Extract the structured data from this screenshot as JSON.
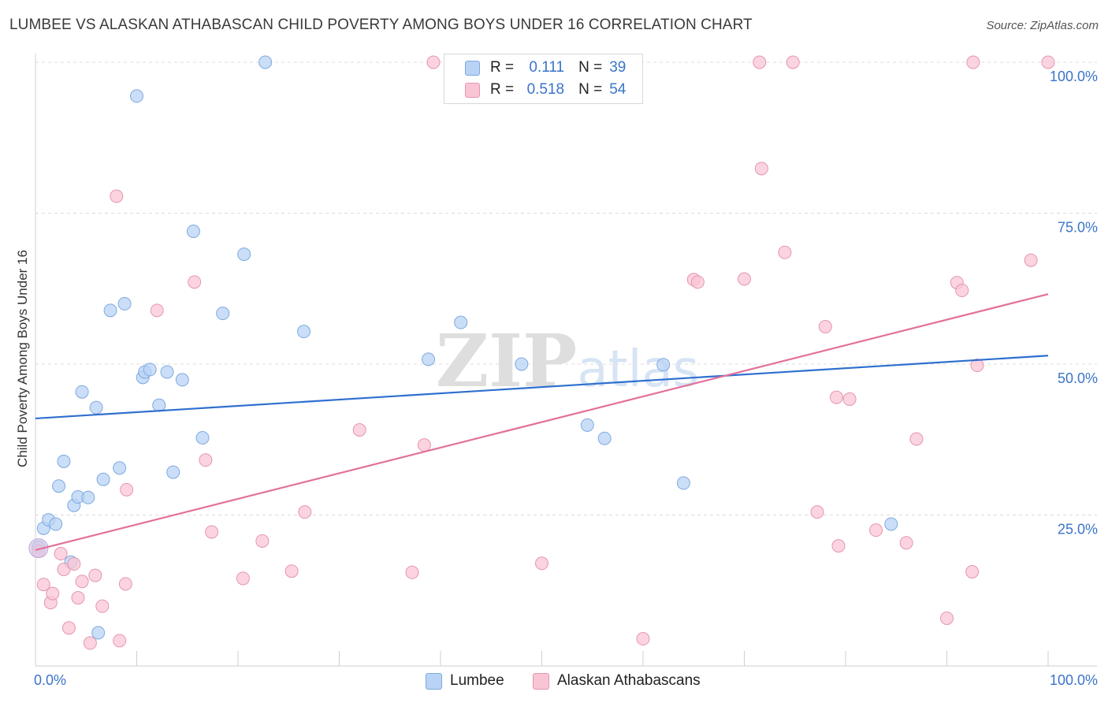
{
  "title": "LUMBEE VS ALASKAN ATHABASCAN CHILD POVERTY AMONG BOYS UNDER 16 CORRELATION CHART",
  "source": "Source: ZipAtlas.com",
  "watermark": "ZIPatlas",
  "legend": {
    "rows": [
      {
        "r_label": "R =",
        "r_value": "0.111",
        "n_label": "N =",
        "n_value": "39"
      },
      {
        "r_label": "R =",
        "r_value": "0.518",
        "n_label": "N =",
        "n_value": "54"
      }
    ]
  },
  "bottom_legend": [
    "Lumbee",
    "Alaskan Athabascans"
  ],
  "colors": {
    "lumbee_fill": "#b8d3f5",
    "lumbee_stroke": "#7fa9df",
    "lumbee_line": "#2f6fcf",
    "athabascan_fill": "#f9c5d5",
    "athabascan_stroke": "#e596b0",
    "athabascan_line": "#e2719a",
    "tick_label": "#3a74c9",
    "grid": "#dcdcdc"
  },
  "chart_data": {
    "type": "scatter",
    "title": "LUMBEE VS ALASKAN ATHABASCAN CHILD POVERTY AMONG BOYS UNDER 16 CORRELATION CHART",
    "xlabel": "",
    "ylabel": "Child Poverty Among Boys Under 16",
    "xlim": [
      0,
      100
    ],
    "ylim": [
      0,
      100
    ],
    "x_tick_labels": [
      "0.0%",
      "100.0%"
    ],
    "y_ticks": [
      25,
      50,
      75,
      100
    ],
    "y_tick_labels": [
      "25.0%",
      "50.0%",
      "75.0%",
      "100.0%"
    ],
    "grid": "horizontal dashed",
    "legend_position": "top-center",
    "series": [
      {
        "name": "Lumbee",
        "R": 0.111,
        "N": 39,
        "trend": {
          "x": [
            0,
            100
          ],
          "y": [
            41.0,
            51.4
          ]
        },
        "points": [
          [
            0.3,
            19.7
          ],
          [
            0.8,
            22.8
          ],
          [
            1.3,
            24.2
          ],
          [
            2.0,
            23.5
          ],
          [
            2.3,
            29.8
          ],
          [
            2.8,
            33.9
          ],
          [
            3.5,
            17.2
          ],
          [
            3.8,
            26.6
          ],
          [
            4.2,
            28.0
          ],
          [
            4.6,
            45.4
          ],
          [
            5.2,
            27.9
          ],
          [
            6.0,
            42.8
          ],
          [
            6.2,
            5.5
          ],
          [
            6.7,
            30.9
          ],
          [
            7.4,
            58.9
          ],
          [
            8.3,
            32.8
          ],
          [
            8.8,
            60.0
          ],
          [
            10.0,
            94.4
          ],
          [
            10.6,
            47.8
          ],
          [
            10.8,
            48.7
          ],
          [
            11.3,
            49.1
          ],
          [
            12.2,
            43.2
          ],
          [
            13.0,
            48.7
          ],
          [
            13.6,
            32.1
          ],
          [
            14.5,
            47.4
          ],
          [
            15.6,
            72.0
          ],
          [
            16.5,
            37.8
          ],
          [
            18.5,
            58.4
          ],
          [
            20.6,
            68.2
          ],
          [
            22.7,
            100.0
          ],
          [
            26.5,
            55.4
          ],
          [
            38.8,
            50.8
          ],
          [
            42.0,
            56.9
          ],
          [
            48.0,
            50.0
          ],
          [
            54.5,
            39.9
          ],
          [
            56.2,
            37.7
          ],
          [
            62.0,
            49.9
          ],
          [
            64.0,
            30.3
          ],
          [
            84.5,
            23.5
          ]
        ]
      },
      {
        "name": "Alaskan Athabascans",
        "R": 0.518,
        "N": 54,
        "trend": {
          "x": [
            0,
            100
          ],
          "y": [
            19.2,
            61.6
          ]
        },
        "points": [
          [
            0.3,
            19.0
          ],
          [
            0.8,
            13.5
          ],
          [
            1.5,
            10.5
          ],
          [
            1.7,
            12.0
          ],
          [
            2.5,
            18.6
          ],
          [
            2.8,
            16.0
          ],
          [
            3.3,
            6.3
          ],
          [
            3.8,
            16.9
          ],
          [
            4.2,
            11.3
          ],
          [
            4.6,
            14.0
          ],
          [
            5.4,
            3.8
          ],
          [
            5.9,
            15.0
          ],
          [
            6.6,
            9.9
          ],
          [
            8.3,
            4.2
          ],
          [
            8.9,
            13.6
          ],
          [
            9.0,
            29.2
          ],
          [
            8.0,
            77.8
          ],
          [
            12.0,
            58.9
          ],
          [
            15.7,
            63.6
          ],
          [
            16.8,
            34.1
          ],
          [
            17.4,
            22.2
          ],
          [
            20.5,
            14.5
          ],
          [
            22.4,
            20.7
          ],
          [
            25.3,
            15.7
          ],
          [
            26.6,
            25.5
          ],
          [
            32.0,
            39.1
          ],
          [
            37.2,
            15.5
          ],
          [
            38.4,
            36.6
          ],
          [
            39.3,
            100.0
          ],
          [
            50.0,
            17.0
          ],
          [
            60.0,
            4.5
          ],
          [
            65.0,
            64.0
          ],
          [
            65.4,
            63.6
          ],
          [
            70.0,
            64.1
          ],
          [
            71.5,
            100.0
          ],
          [
            71.7,
            82.4
          ],
          [
            74.0,
            68.5
          ],
          [
            74.8,
            100.0
          ],
          [
            77.2,
            25.5
          ],
          [
            78.0,
            56.2
          ],
          [
            79.1,
            44.5
          ],
          [
            79.3,
            19.9
          ],
          [
            80.4,
            44.2
          ],
          [
            83.0,
            22.5
          ],
          [
            86.0,
            20.4
          ],
          [
            87.0,
            37.6
          ],
          [
            90.0,
            7.9
          ],
          [
            91.0,
            63.5
          ],
          [
            91.5,
            62.2
          ],
          [
            92.6,
            100.0
          ],
          [
            92.5,
            15.6
          ],
          [
            93.0,
            49.8
          ],
          [
            98.3,
            67.2
          ],
          [
            100.0,
            100.0
          ]
        ]
      }
    ]
  }
}
